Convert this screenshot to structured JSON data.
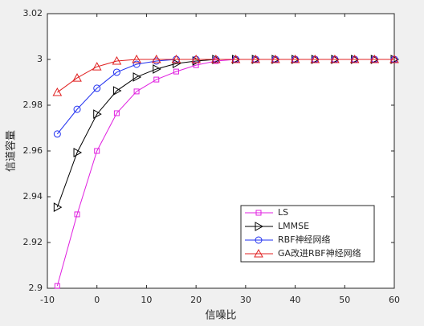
{
  "chart_data": {
    "type": "line",
    "xlabel": "信噪比",
    "ylabel": "信道容量",
    "x": [
      -8,
      -4,
      0,
      4,
      8,
      12,
      16,
      20,
      24,
      28,
      32,
      36,
      40,
      44,
      48,
      52,
      56,
      60
    ],
    "series": [
      {
        "name": "LS",
        "color": "#e020e0",
        "marker": "square",
        "values": [
          2.901,
          2.9323,
          2.96,
          2.9765,
          2.986,
          2.9912,
          2.9947,
          2.9975,
          2.9993,
          3,
          3,
          3,
          3,
          3,
          3,
          3,
          3,
          3
        ]
      },
      {
        "name": "LMMSE",
        "color": "#000000",
        "marker": "triangle-right",
        "values": [
          2.9354,
          2.9593,
          2.9761,
          2.9863,
          2.9923,
          2.9958,
          2.9982,
          2.9993,
          3,
          3,
          3,
          3,
          3,
          3,
          3,
          3,
          3,
          3
        ]
      },
      {
        "name": "RBF神经网络",
        "color": "#1f2ff0",
        "marker": "circle",
        "values": [
          2.9674,
          2.9782,
          2.9874,
          2.9944,
          2.9979,
          2.9993,
          3,
          3,
          3,
          3,
          3,
          3,
          3,
          3,
          3,
          3,
          3,
          3
        ]
      },
      {
        "name": "GA改进RBF神经网络",
        "color": "#e02020",
        "marker": "triangle-up",
        "values": [
          2.9856,
          2.9919,
          2.9968,
          2.9993,
          3,
          3,
          3,
          3,
          3,
          3,
          3,
          3,
          3,
          3,
          3,
          3,
          3,
          3
        ]
      }
    ],
    "xlim": [
      -10,
      60
    ],
    "xticks": [
      -10,
      0,
      10,
      20,
      30,
      40,
      50,
      60
    ],
    "ylim": [
      2.9,
      3.02
    ],
    "yticks": [
      2.9,
      2.92,
      2.94,
      2.96,
      2.98,
      3,
      3.02
    ],
    "grid": false,
    "legend": "lower right"
  }
}
